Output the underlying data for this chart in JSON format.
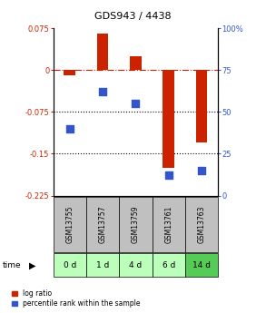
{
  "title": "GDS943 / 4438",
  "samples": [
    "GSM13755",
    "GSM13757",
    "GSM13759",
    "GSM13761",
    "GSM13763"
  ],
  "time_labels": [
    "0 d",
    "1 d",
    "4 d",
    "6 d",
    "14 d"
  ],
  "log_ratio": [
    -0.01,
    0.065,
    0.025,
    -0.175,
    -0.13
  ],
  "percentile_rank": [
    40,
    62,
    55,
    12,
    15
  ],
  "left_ylim": [
    -0.225,
    0.075
  ],
  "right_ylim": [
    0,
    100
  ],
  "left_yticks": [
    0.075,
    0,
    -0.075,
    -0.15,
    -0.225
  ],
  "right_yticks": [
    100,
    75,
    50,
    25,
    0
  ],
  "left_tick_labels": [
    "0.075",
    "0",
    "-0.075",
    "-0.15",
    "-0.225"
  ],
  "right_tick_labels": [
    "100%",
    "75",
    "50",
    "25",
    "0"
  ],
  "hlines_dotted": [
    -0.075,
    -0.15
  ],
  "hline_dash": 0.0,
  "bar_color": "#cc2200",
  "dot_color": "#3355cc",
  "bar_width": 0.35,
  "dot_size": 28,
  "background_color": "#ffffff",
  "plot_bg": "#ffffff",
  "legend_bar_label": "log ratio",
  "legend_dot_label": "percentile rank within the sample",
  "gsm_bg": "#c0c0c0",
  "time_bg_colors": [
    "#bbffbb",
    "#bbffbb",
    "#bbffbb",
    "#bbffbb",
    "#55cc55"
  ],
  "title_fontsize": 8,
  "tick_fontsize": 6,
  "gsm_fontsize": 5.5,
  "time_fontsize": 6.5,
  "legend_fontsize": 5.5
}
